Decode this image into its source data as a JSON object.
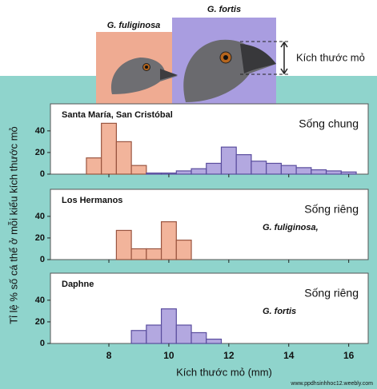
{
  "illustration": {
    "left_label": "G. fuliginosa",
    "right_label": "G. fortis",
    "beak_label": "Kích thước mỏ"
  },
  "x_label": "Kích thước mỏ (mm)",
  "y_label": "Tỉ lệ % số cá thể ở mỗi kiểu kích thước mỏ",
  "source": "www.ppdhsinhhoc12.weebly.com",
  "chart_data": [
    {
      "type": "histogram",
      "title": "Santa María, San Cristóbal",
      "subtitle": "Sống chung",
      "xlim": [
        6.05,
        16.65
      ],
      "xticks": [
        8,
        10,
        12,
        14,
        16
      ],
      "ylim": [
        0,
        65
      ],
      "yticks": [
        0,
        20,
        40
      ],
      "series": [
        {
          "color": "#f2b49b",
          "bins": [
            7.25,
            7.75,
            8.25,
            8.75,
            9.25
          ],
          "values": [
            15,
            47,
            30,
            8
          ]
        },
        {
          "color": "#b3a8e0",
          "bins": [
            9.25,
            9.75,
            10.25,
            10.75,
            11.25,
            11.75,
            12.25,
            12.75,
            13.25,
            13.75,
            14.25,
            14.75,
            15.25,
            15.75,
            16.25
          ],
          "values": [
            1,
            1,
            3,
            5,
            10,
            25,
            18,
            12,
            10,
            8,
            6,
            4,
            3,
            2
          ]
        }
      ]
    },
    {
      "type": "histogram",
      "title": "Los Hermanos",
      "subtitle": "Sống riêng",
      "annotation": "G. fuliginosa,",
      "xlim": [
        6.05,
        16.65
      ],
      "xticks": [
        8,
        10,
        12,
        14,
        16
      ],
      "ylim": [
        0,
        65
      ],
      "yticks": [
        0,
        20,
        40
      ],
      "series": [
        {
          "color": "#f2b49b",
          "bins": [
            8.25,
            8.75,
            9.25,
            9.75,
            10.25,
            10.75
          ],
          "values": [
            27,
            10,
            10,
            35,
            18
          ]
        }
      ]
    },
    {
      "type": "histogram",
      "title": "Daphne",
      "subtitle": "Sống riêng",
      "annotation": "G. fortis",
      "xlim": [
        6.05,
        16.65
      ],
      "xticks": [
        8,
        10,
        12,
        14,
        16
      ],
      "ylim": [
        0,
        65
      ],
      "yticks": [
        0,
        20,
        40
      ],
      "series": [
        {
          "color": "#b3a8e0",
          "bins": [
            8.75,
            9.25,
            9.75,
            10.25,
            10.75,
            11.25,
            11.75
          ],
          "values": [
            12,
            17,
            32,
            17,
            10,
            4
          ]
        }
      ]
    }
  ]
}
